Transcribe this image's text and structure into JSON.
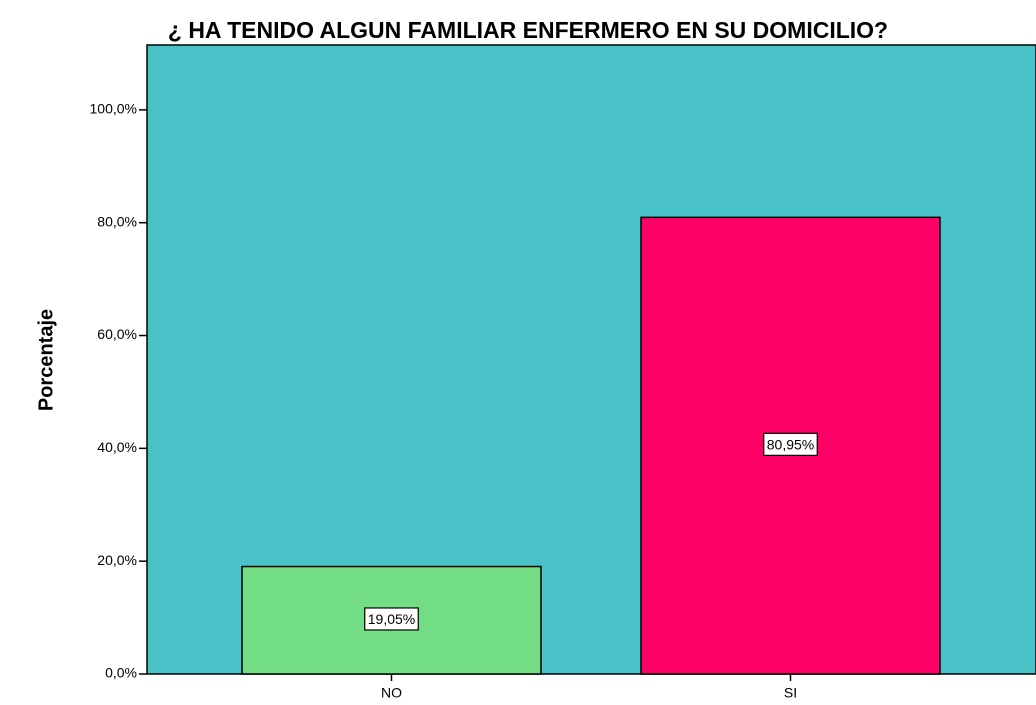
{
  "chart_data": {
    "type": "bar",
    "title": "¿ HA TENIDO ALGUN FAMILIAR ENFERMERO EN SU DOMICILIO?",
    "y_label": "Porcentaje",
    "categories": [
      "NO",
      "SI"
    ],
    "values": [
      19.05,
      80.95
    ],
    "value_labels": [
      "19,05%",
      "80,95%"
    ],
    "colors": [
      "#73dd85",
      "#ff0066"
    ],
    "background": "#48c2c6",
    "ylim": [
      0,
      111.5
    ],
    "yticks": [
      {
        "value": 0,
        "label": "0,0%"
      },
      {
        "value": 20,
        "label": "20,0%"
      },
      {
        "value": 40,
        "label": "40,0%"
      },
      {
        "value": 60,
        "label": "60,0%"
      },
      {
        "value": 80,
        "label": "80,0%"
      },
      {
        "value": 100,
        "label": "100,0%"
      }
    ]
  }
}
